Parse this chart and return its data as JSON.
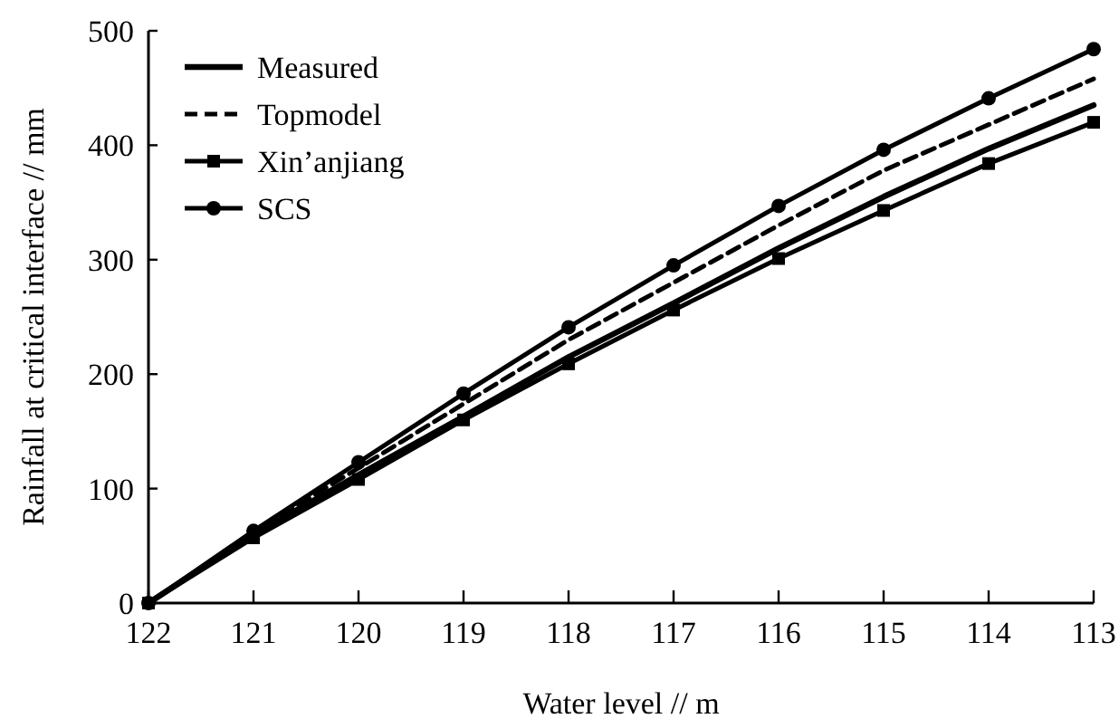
{
  "chart_data": {
    "type": "line",
    "xlabel": "Water level // m",
    "ylabel": "Rainfall at critical interface // mm",
    "x": [
      122,
      121,
      120,
      119,
      118,
      117,
      116,
      115,
      114,
      113
    ],
    "xlim": [
      122,
      113
    ],
    "xticks": [
      122,
      121,
      120,
      119,
      118,
      117,
      116,
      115,
      114,
      113
    ],
    "ylim": [
      0,
      500
    ],
    "yticks": [
      0,
      100,
      200,
      300,
      400,
      500
    ],
    "grid": false,
    "legend": "top left",
    "series": [
      {
        "name": "Measured",
        "color": "#000000",
        "marker": "none",
        "line_style": "solid",
        "values": [
          0,
          60,
          112,
          163,
          215,
          262,
          310,
          355,
          397,
          435
        ]
      },
      {
        "name": "Topmodel",
        "color": "#000000",
        "marker": "none",
        "line_style": "dashed",
        "values": [
          0,
          62,
          118,
          174,
          230,
          280,
          330,
          378,
          418,
          458
        ]
      },
      {
        "name": "Xin’anjiang",
        "color": "#000000",
        "marker": "square",
        "line_style": "solid",
        "values": [
          0,
          57,
          108,
          160,
          209,
          256,
          301,
          343,
          384,
          420
        ]
      },
      {
        "name": "SCS",
        "color": "#000000",
        "marker": "circle",
        "line_style": "solid",
        "values": [
          0,
          63,
          123,
          183,
          241,
          295,
          347,
          396,
          441,
          484
        ]
      }
    ]
  }
}
